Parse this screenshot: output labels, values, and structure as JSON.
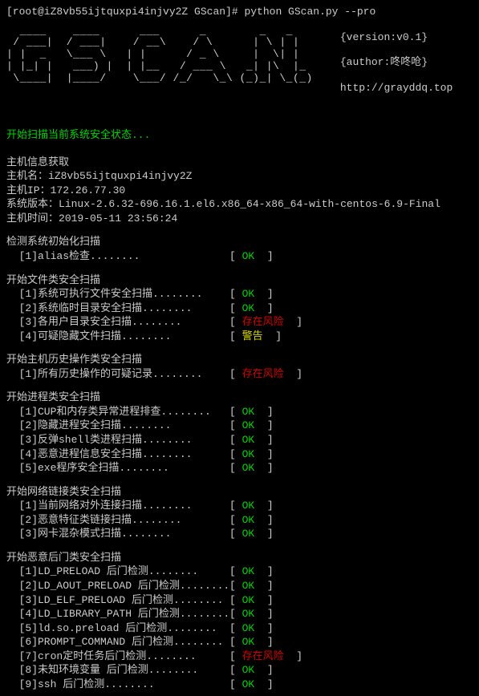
{
  "prompt": "[root@iZ8vb55ijtquxpi4injvy2Z GScan]# python GScan.py --pro",
  "ascii_art": "  ____    ____      ___      _        _   _\n / ___|  / ___|    / __\\    / \\      | \\ | |\n| |  _   \\___ \\   | |      / _ \\     |  \\| |\n| |_| |   ___) |  | |__   / ___ \\   _| |\\  |_\n \\____|  |____/    \\___/ /_/   \\_\\ (_)_| \\_(_)",
  "meta": {
    "version": "{version:v0.1}",
    "author": "{author:咚咚呛}",
    "url": "http://grayddq.top"
  },
  "scan_start": "开始扫描当前系统安全状态...",
  "host_info": {
    "title": "主机信息获取",
    "hostname_label": "主机名：",
    "hostname": "iZ8vb55ijtquxpi4injvy2Z",
    "ip_label": "主机IP：",
    "ip": "172.26.77.30",
    "os_label": "系统版本：",
    "os": "Linux-2.6.32-696.16.1.el6.x86_64-x86_64-with-centos-6.9-Final",
    "time_label": "主机时间：",
    "time": "2019-05-11 23:56:24"
  },
  "sections": [
    {
      "title": "检测系统初始化扫描",
      "items": [
        {
          "label": "  [1]alias检查",
          "status": "OK",
          "color": "green"
        }
      ]
    },
    {
      "title": "开始文件类安全扫描",
      "items": [
        {
          "label": "  [1]系统可执行文件安全扫描",
          "status": "OK",
          "color": "green"
        },
        {
          "label": "  [2]系统临时目录安全扫描",
          "status": "OK",
          "color": "green"
        },
        {
          "label": "  [3]各用户目录安全扫描",
          "status": "存在风险",
          "color": "red"
        },
        {
          "label": "  [4]可疑隐藏文件扫描",
          "status": "警告",
          "color": "yellow"
        }
      ]
    },
    {
      "title": "开始主机历史操作类安全扫描",
      "items": [
        {
          "label": "  [1]所有历史操作的可疑记录",
          "status": "存在风险",
          "color": "red"
        }
      ]
    },
    {
      "title": "开始进程类安全扫描",
      "items": [
        {
          "label": "  [1]CUP和内存类异常进程排查",
          "status": "OK",
          "color": "green"
        },
        {
          "label": "  [2]隐藏进程安全扫描",
          "status": "OK",
          "color": "green"
        },
        {
          "label": "  [3]反弹shell类进程扫描",
          "status": "OK",
          "color": "green"
        },
        {
          "label": "  [4]恶意进程信息安全扫描",
          "status": "OK",
          "color": "green"
        },
        {
          "label": "  [5]exe程序安全扫描",
          "status": "OK",
          "color": "green"
        }
      ]
    },
    {
      "title": "开始网络链接类安全扫描",
      "items": [
        {
          "label": "  [1]当前网络对外连接扫描",
          "status": "OK",
          "color": "green"
        },
        {
          "label": "  [2]恶意特征类链接扫描",
          "status": "OK",
          "color": "green"
        },
        {
          "label": "  [3]网卡混杂模式扫描",
          "status": "OK",
          "color": "green"
        }
      ]
    },
    {
      "title": "开始恶意后门类安全扫描",
      "items": [
        {
          "label": "  [1]LD_PRELOAD 后门检测",
          "status": "OK",
          "color": "green"
        },
        {
          "label": "  [2]LD_AOUT_PRELOAD 后门检测",
          "status": "OK",
          "color": "green"
        },
        {
          "label": "  [3]LD_ELF_PRELOAD 后门检测",
          "status": "OK",
          "color": "green"
        },
        {
          "label": "  [4]LD_LIBRARY_PATH 后门检测",
          "status": "OK",
          "color": "green"
        },
        {
          "label": "  [5]ld.so.preload 后门检测",
          "status": "OK",
          "color": "green"
        },
        {
          "label": "  [6]PROMPT_COMMAND 后门检测",
          "status": "OK",
          "color": "green"
        },
        {
          "label": "  [7]cron定时任务后门检测",
          "status": "存在风险",
          "color": "red"
        },
        {
          "label": "  [8]未知环境变量 后门检测",
          "status": "OK",
          "color": "green"
        },
        {
          "label": "  [9]ssh 后门检测",
          "status": "OK",
          "color": "green"
        }
      ]
    }
  ],
  "tokens": {
    "lbracket": "[ ",
    "rbracket": "  ]",
    "dots": "........"
  }
}
